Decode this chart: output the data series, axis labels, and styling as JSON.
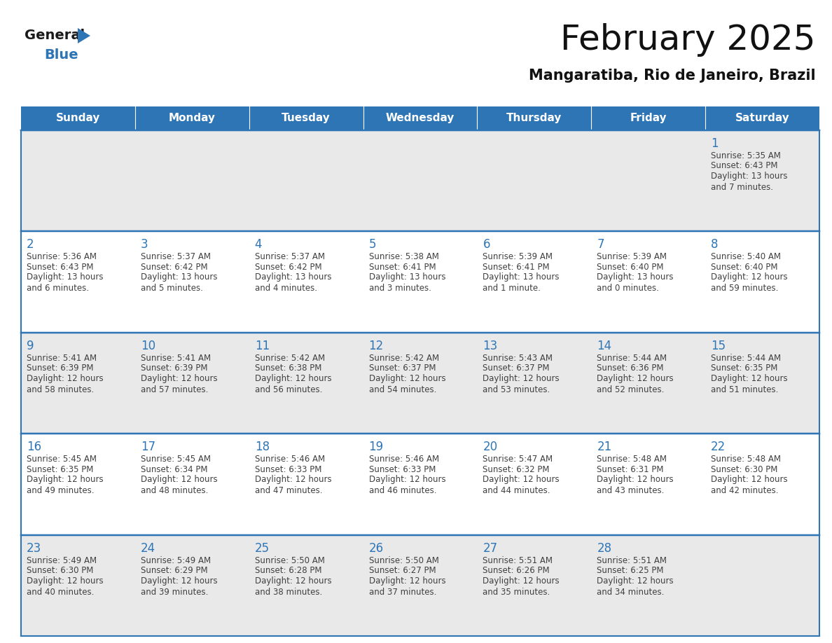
{
  "title": "February 2025",
  "subtitle": "Mangaratiba, Rio de Janeiro, Brazil",
  "header_bg_color": "#2e75b6",
  "header_text_color": "#ffffff",
  "day_names": [
    "Sunday",
    "Monday",
    "Tuesday",
    "Wednesday",
    "Thursday",
    "Friday",
    "Saturday"
  ],
  "cell_bg_color": "#e9e9e9",
  "cell_bg_white": "#ffffff",
  "date_color": "#2e75b6",
  "text_color": "#404040",
  "border_color": "#2e75b6",
  "logo_general_color": "#1a1a1a",
  "logo_blue_color": "#2e75b6",
  "calendar": [
    [
      null,
      null,
      null,
      null,
      null,
      null,
      {
        "day": 1,
        "sunrise": "5:35 AM",
        "sunset": "6:43 PM",
        "daylight": "13 hours\nand 7 minutes."
      }
    ],
    [
      {
        "day": 2,
        "sunrise": "5:36 AM",
        "sunset": "6:43 PM",
        "daylight": "13 hours\nand 6 minutes."
      },
      {
        "day": 3,
        "sunrise": "5:37 AM",
        "sunset": "6:42 PM",
        "daylight": "13 hours\nand 5 minutes."
      },
      {
        "day": 4,
        "sunrise": "5:37 AM",
        "sunset": "6:42 PM",
        "daylight": "13 hours\nand 4 minutes."
      },
      {
        "day": 5,
        "sunrise": "5:38 AM",
        "sunset": "6:41 PM",
        "daylight": "13 hours\nand 3 minutes."
      },
      {
        "day": 6,
        "sunrise": "5:39 AM",
        "sunset": "6:41 PM",
        "daylight": "13 hours\nand 1 minute."
      },
      {
        "day": 7,
        "sunrise": "5:39 AM",
        "sunset": "6:40 PM",
        "daylight": "13 hours\nand 0 minutes."
      },
      {
        "day": 8,
        "sunrise": "5:40 AM",
        "sunset": "6:40 PM",
        "daylight": "12 hours\nand 59 minutes."
      }
    ],
    [
      {
        "day": 9,
        "sunrise": "5:41 AM",
        "sunset": "6:39 PM",
        "daylight": "12 hours\nand 58 minutes."
      },
      {
        "day": 10,
        "sunrise": "5:41 AM",
        "sunset": "6:39 PM",
        "daylight": "12 hours\nand 57 minutes."
      },
      {
        "day": 11,
        "sunrise": "5:42 AM",
        "sunset": "6:38 PM",
        "daylight": "12 hours\nand 56 minutes."
      },
      {
        "day": 12,
        "sunrise": "5:42 AM",
        "sunset": "6:37 PM",
        "daylight": "12 hours\nand 54 minutes."
      },
      {
        "day": 13,
        "sunrise": "5:43 AM",
        "sunset": "6:37 PM",
        "daylight": "12 hours\nand 53 minutes."
      },
      {
        "day": 14,
        "sunrise": "5:44 AM",
        "sunset": "6:36 PM",
        "daylight": "12 hours\nand 52 minutes."
      },
      {
        "day": 15,
        "sunrise": "5:44 AM",
        "sunset": "6:35 PM",
        "daylight": "12 hours\nand 51 minutes."
      }
    ],
    [
      {
        "day": 16,
        "sunrise": "5:45 AM",
        "sunset": "6:35 PM",
        "daylight": "12 hours\nand 49 minutes."
      },
      {
        "day": 17,
        "sunrise": "5:45 AM",
        "sunset": "6:34 PM",
        "daylight": "12 hours\nand 48 minutes."
      },
      {
        "day": 18,
        "sunrise": "5:46 AM",
        "sunset": "6:33 PM",
        "daylight": "12 hours\nand 47 minutes."
      },
      {
        "day": 19,
        "sunrise": "5:46 AM",
        "sunset": "6:33 PM",
        "daylight": "12 hours\nand 46 minutes."
      },
      {
        "day": 20,
        "sunrise": "5:47 AM",
        "sunset": "6:32 PM",
        "daylight": "12 hours\nand 44 minutes."
      },
      {
        "day": 21,
        "sunrise": "5:48 AM",
        "sunset": "6:31 PM",
        "daylight": "12 hours\nand 43 minutes."
      },
      {
        "day": 22,
        "sunrise": "5:48 AM",
        "sunset": "6:30 PM",
        "daylight": "12 hours\nand 42 minutes."
      }
    ],
    [
      {
        "day": 23,
        "sunrise": "5:49 AM",
        "sunset": "6:30 PM",
        "daylight": "12 hours\nand 40 minutes."
      },
      {
        "day": 24,
        "sunrise": "5:49 AM",
        "sunset": "6:29 PM",
        "daylight": "12 hours\nand 39 minutes."
      },
      {
        "day": 25,
        "sunrise": "5:50 AM",
        "sunset": "6:28 PM",
        "daylight": "12 hours\nand 38 minutes."
      },
      {
        "day": 26,
        "sunrise": "5:50 AM",
        "sunset": "6:27 PM",
        "daylight": "12 hours\nand 37 minutes."
      },
      {
        "day": 27,
        "sunrise": "5:51 AM",
        "sunset": "6:26 PM",
        "daylight": "12 hours\nand 35 minutes."
      },
      {
        "day": 28,
        "sunrise": "5:51 AM",
        "sunset": "6:25 PM",
        "daylight": "12 hours\nand 34 minutes."
      },
      null
    ]
  ]
}
